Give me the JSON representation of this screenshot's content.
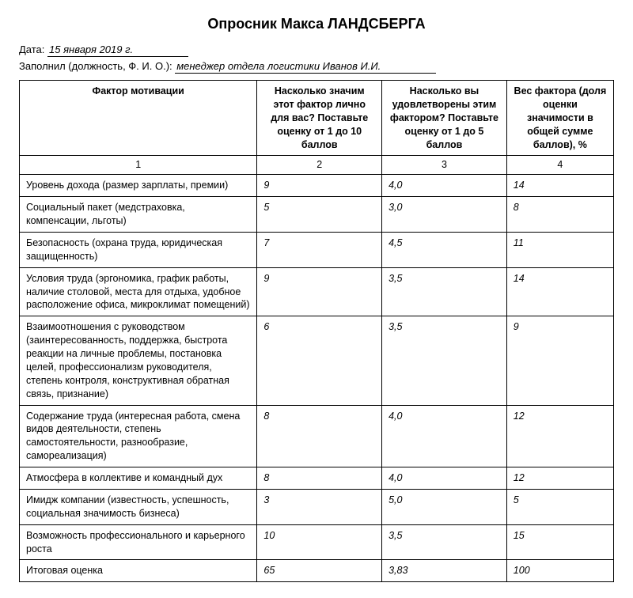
{
  "title": "Опросник Макса ЛАНДСБЕРГА",
  "meta": {
    "date_label": "Дата:",
    "date_value": "15 января 2019 г.",
    "filled_label": "Заполнил (должность, Ф. И. О.):",
    "filled_value": "менеджер отдела логистики Иванов И.И."
  },
  "headers": {
    "c1": "Фактор мотивации",
    "c2": "Насколько значим этот фактор лично для вас? Поставьте оценку от 1 до 10 баллов",
    "c3": "Насколько вы удовлетворены этим фактором? Поставьте оценку от 1 до 5 баллов",
    "c4": "Вес фактора (доля оценки значимости в общей сумме баллов), %"
  },
  "colnums": {
    "c1": "1",
    "c2": "2",
    "c3": "3",
    "c4": "4"
  },
  "rows": [
    {
      "factor": "Уровень дохода (размер зарплаты, премии)",
      "v1": "9",
      "v2": "4,0",
      "v3": "14"
    },
    {
      "factor": "Социальный пакет (медстраховка, компенсации, льготы)",
      "v1": "5",
      "v2": "3,0",
      "v3": "8"
    },
    {
      "factor": "Безопасность (охрана труда, юридическая защищенность)",
      "v1": "7",
      "v2": "4,5",
      "v3": "11"
    },
    {
      "factor": "Условия труда (эргономика, график работы, наличие столовой, места для отдыха, удобное расположение офиса, микроклимат помещений)",
      "v1": "9",
      "v2": "3,5",
      "v3": "14"
    },
    {
      "factor": "Взаимоотношения с руководством (заинтересованность, поддержка, быстрота реакции на личные проблемы, постановка целей, профессионализм руководителя, степень контроля, конструктивная обратная связь, признание)",
      "v1": "6",
      "v2": "3,5",
      "v3": "9"
    },
    {
      "factor": "Содержание труда (интересная работа, смена видов деятельности, степень самостоятельности, разнообразие, самореализация)",
      "v1": "8",
      "v2": "4,0",
      "v3": "12"
    },
    {
      "factor": "Атмосфера в коллективе и командный дух",
      "v1": "8",
      "v2": "4,0",
      "v3": "12"
    },
    {
      "factor": "Имидж компании (известность, успешность, социальная значимость бизнеса)",
      "v1": "3",
      "v2": "5,0",
      "v3": "5"
    },
    {
      "factor": "Возможность профессионального и карьерного роста",
      "v1": "10",
      "v2": "3,5",
      "v3": "15"
    },
    {
      "factor": "Итоговая оценка",
      "v1": "65",
      "v2": "3,83",
      "v3": "100"
    }
  ],
  "style": {
    "background_color": "#ffffff",
    "text_color": "#000000",
    "border_color": "#000000",
    "title_fontsize": 18,
    "body_fontsize": 13,
    "cell_fontsize": 12.5,
    "font_family": "Arial",
    "value_font_style": "italic",
    "col_widths_pct": [
      40,
      21,
      21,
      18
    ]
  }
}
